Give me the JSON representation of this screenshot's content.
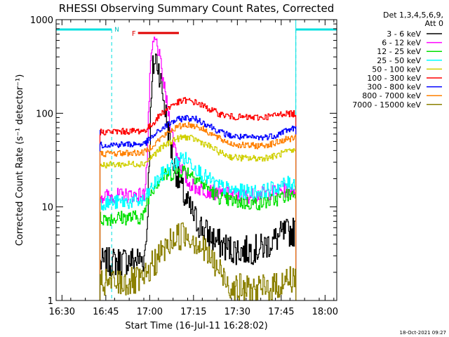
{
  "chart_data": {
    "type": "line",
    "title": "RHESSI Observing Summary Count Rates, Corrected",
    "xlabel": "Start Time (16-Jul-11 16:28:02)",
    "ylabel": "Corrected Count Rate (s⁻¹ detector⁻¹)",
    "yscale": "log",
    "ylim": [
      1,
      1000
    ],
    "xlim_minutes": [
      0,
      96
    ],
    "x_tick_labels": [
      "16:30",
      "16:45",
      "17:00",
      "17:15",
      "17:30",
      "17:45",
      "18:00"
    ],
    "x_tick_minutes": [
      2,
      17,
      32,
      47,
      62,
      77,
      92
    ],
    "y_tick_labels": [
      "1",
      "10",
      "100",
      "1000"
    ],
    "y_tick_values": [
      1,
      10,
      100,
      1000
    ],
    "legend_header": [
      "Det 1,3,4,5,6,9,",
      "Att 0"
    ],
    "legend_position": "right",
    "timestamp": "18-Oct-2021 09:27",
    "annotations": {
      "night_label": "N",
      "night_intervals_minutes": [
        [
          0,
          19
        ],
        [
          82,
          96
        ]
      ],
      "flare_label": "F",
      "flare_interval_minutes": [
        28,
        42
      ]
    },
    "data_start_minutes": 15,
    "data_end_minutes": 82,
    "series": [
      {
        "name": "3 - 6 keV",
        "color": "#000000",
        "points": [
          [
            15,
            2.5
          ],
          [
            30,
            2.8
          ],
          [
            31,
            6
          ],
          [
            32,
            60
          ],
          [
            33,
            300
          ],
          [
            34,
            390
          ],
          [
            35,
            310
          ],
          [
            37,
            120
          ],
          [
            40,
            30
          ],
          [
            44,
            12
          ],
          [
            48,
            7
          ],
          [
            52,
            5
          ],
          [
            56,
            4
          ],
          [
            60,
            3.5
          ],
          [
            64,
            3.4
          ],
          [
            70,
            3.6
          ],
          [
            75,
            4.5
          ],
          [
            78,
            5.2
          ],
          [
            82,
            5.5
          ]
        ]
      },
      {
        "name": "6 - 12 keV",
        "color": "#ff00ff",
        "points": [
          [
            15,
            13
          ],
          [
            30,
            13.5
          ],
          [
            31,
            30
          ],
          [
            32,
            250
          ],
          [
            33,
            550
          ],
          [
            34,
            600
          ],
          [
            35,
            450
          ],
          [
            37,
            180
          ],
          [
            40,
            50
          ],
          [
            43,
            25
          ],
          [
            45,
            18
          ],
          [
            48,
            16
          ],
          [
            55,
            14
          ],
          [
            65,
            13
          ],
          [
            75,
            14.5
          ],
          [
            78,
            15
          ],
          [
            82,
            15.5
          ]
        ]
      },
      {
        "name": "12 - 25 keV",
        "color": "#00e000",
        "points": [
          [
            15,
            7.5
          ],
          [
            30,
            7.8
          ],
          [
            31,
            12
          ],
          [
            33,
            16
          ],
          [
            36,
            21
          ],
          [
            40,
            23
          ],
          [
            43,
            25
          ],
          [
            46,
            23
          ],
          [
            50,
            18
          ],
          [
            55,
            13
          ],
          [
            60,
            11.5
          ],
          [
            65,
            11
          ],
          [
            70,
            11
          ],
          [
            75,
            12
          ],
          [
            78,
            13
          ],
          [
            82,
            14
          ]
        ]
      },
      {
        "name": "25 - 50 keV",
        "color": "#00ffff",
        "points": [
          [
            15,
            11
          ],
          [
            30,
            11.5
          ],
          [
            32,
            15
          ],
          [
            36,
            22
          ],
          [
            40,
            28
          ],
          [
            43,
            34
          ],
          [
            46,
            30
          ],
          [
            50,
            22
          ],
          [
            55,
            17
          ],
          [
            60,
            15
          ],
          [
            65,
            14.5
          ],
          [
            70,
            14.5
          ],
          [
            75,
            16
          ],
          [
            78,
            17.5
          ],
          [
            82,
            18
          ]
        ]
      },
      {
        "name": "50 - 100 keV",
        "color": "#d0d000",
        "points": [
          [
            15,
            28
          ],
          [
            30,
            29
          ],
          [
            32,
            33
          ],
          [
            36,
            43
          ],
          [
            40,
            52
          ],
          [
            44,
            56
          ],
          [
            48,
            52
          ],
          [
            52,
            45
          ],
          [
            56,
            38
          ],
          [
            60,
            34
          ],
          [
            65,
            33
          ],
          [
            70,
            33
          ],
          [
            75,
            35
          ],
          [
            78,
            38
          ],
          [
            82,
            40
          ]
        ]
      },
      {
        "name": "100 - 300 keV",
        "color": "#ff0000",
        "points": [
          [
            15,
            63
          ],
          [
            30,
            65
          ],
          [
            32,
            72
          ],
          [
            36,
            100
          ],
          [
            40,
            125
          ],
          [
            44,
            138
          ],
          [
            48,
            130
          ],
          [
            52,
            112
          ],
          [
            56,
            98
          ],
          [
            60,
            92
          ],
          [
            65,
            90
          ],
          [
            70,
            90
          ],
          [
            75,
            95
          ],
          [
            78,
            100
          ],
          [
            82,
            98
          ]
        ]
      },
      {
        "name": "300 - 800 keV",
        "color": "#0000ff",
        "points": [
          [
            15,
            46
          ],
          [
            30,
            47
          ],
          [
            32,
            53
          ],
          [
            36,
            68
          ],
          [
            40,
            82
          ],
          [
            44,
            90
          ],
          [
            48,
            86
          ],
          [
            52,
            75
          ],
          [
            56,
            63
          ],
          [
            60,
            57
          ],
          [
            65,
            55
          ],
          [
            70,
            55
          ],
          [
            75,
            58
          ],
          [
            78,
            65
          ],
          [
            82,
            70
          ]
        ]
      },
      {
        "name": "800 - 7000 keV",
        "color": "#ff8000",
        "points": [
          [
            15,
            37
          ],
          [
            30,
            38
          ],
          [
            32,
            43
          ],
          [
            36,
            55
          ],
          [
            40,
            68
          ],
          [
            44,
            76
          ],
          [
            48,
            73
          ],
          [
            52,
            63
          ],
          [
            56,
            53
          ],
          [
            60,
            47
          ],
          [
            65,
            45
          ],
          [
            70,
            45
          ],
          [
            75,
            48
          ],
          [
            78,
            52
          ],
          [
            82,
            55
          ]
        ]
      },
      {
        "name": "7000 - 15000 keV",
        "color": "#8b8000",
        "points": [
          [
            15,
            1.5
          ],
          [
            30,
            1.6
          ],
          [
            32,
            2.2
          ],
          [
            36,
            3.2
          ],
          [
            40,
            4.6
          ],
          [
            44,
            5.2
          ],
          [
            48,
            4.3
          ],
          [
            52,
            3
          ],
          [
            56,
            2
          ],
          [
            60,
            1.4
          ],
          [
            65,
            1.3
          ],
          [
            70,
            1.3
          ],
          [
            75,
            1.4
          ],
          [
            78,
            1.6
          ],
          [
            82,
            1.8
          ]
        ]
      }
    ]
  }
}
